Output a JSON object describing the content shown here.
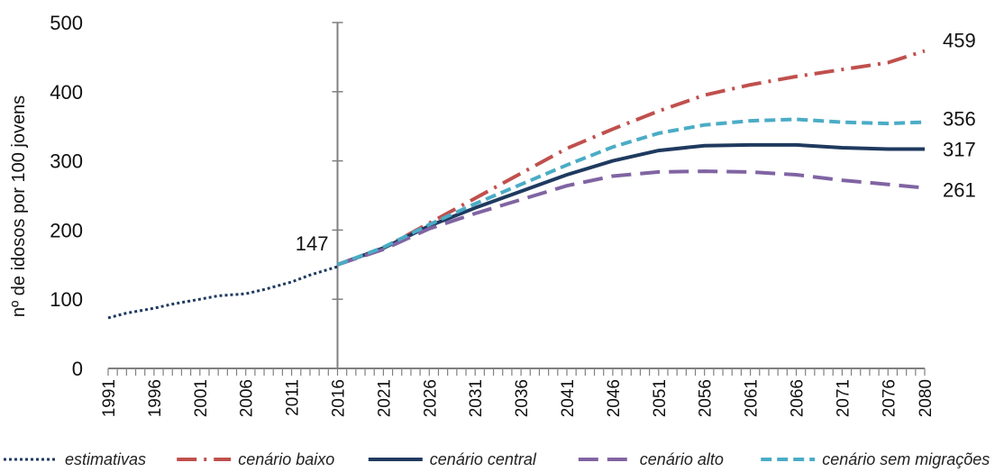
{
  "chart_data": {
    "type": "line",
    "ylabel": "nº de idosos por 100 jovens",
    "xlabel": "",
    "ylim": [
      0,
      500
    ],
    "yticks": [
      0,
      100,
      200,
      300,
      400,
      500
    ],
    "x_range": [
      1991,
      2080
    ],
    "xticks": [
      1991,
      1996,
      2001,
      2006,
      2011,
      2016,
      2021,
      2026,
      2031,
      2036,
      2041,
      2046,
      2051,
      2056,
      2061,
      2066,
      2071,
      2076,
      2080
    ],
    "divider_year": 2016,
    "grid": false,
    "legend_position": "bottom",
    "annotations": [
      {
        "x": 2016,
        "y": 147,
        "label": "147"
      },
      {
        "x": 2080,
        "y": 459,
        "label": "459"
      },
      {
        "x": 2080,
        "y": 356,
        "label": "356"
      },
      {
        "x": 2080,
        "y": 317,
        "label": "317"
      },
      {
        "x": 2080,
        "y": 261,
        "label": "261"
      }
    ],
    "series": [
      {
        "name": "estimativas",
        "color": "#1f3a5f",
        "style": "dotted",
        "x": [
          1991,
          1993,
          1996,
          1998,
          2001,
          2003,
          2006,
          2008,
          2011,
          2013,
          2016
        ],
        "y": [
          73,
          80,
          87,
          93,
          100,
          105,
          108,
          114,
          125,
          135,
          147
        ]
      },
      {
        "name": "cenário baixo",
        "color": "#c0504d",
        "style": "dashdot",
        "x": [
          2016,
          2021,
          2026,
          2031,
          2036,
          2041,
          2046,
          2051,
          2056,
          2061,
          2066,
          2071,
          2076,
          2080
        ],
        "y": [
          150,
          174,
          210,
          246,
          282,
          318,
          346,
          372,
          395,
          410,
          422,
          432,
          442,
          459
        ]
      },
      {
        "name": "cenário central",
        "color": "#1f3a5f",
        "style": "solid",
        "x": [
          2016,
          2021,
          2026,
          2031,
          2036,
          2041,
          2046,
          2051,
          2056,
          2061,
          2066,
          2071,
          2076,
          2080
        ],
        "y": [
          150,
          174,
          206,
          232,
          256,
          280,
          300,
          315,
          322,
          323,
          323,
          319,
          317,
          317
        ]
      },
      {
        "name": "cenário alto",
        "color": "#8064a2",
        "style": "longdash",
        "x": [
          2016,
          2021,
          2026,
          2031,
          2036,
          2041,
          2046,
          2051,
          2056,
          2061,
          2066,
          2071,
          2076,
          2080
        ],
        "y": [
          150,
          172,
          202,
          224,
          244,
          264,
          278,
          284,
          285,
          284,
          280,
          272,
          266,
          261
        ]
      },
      {
        "name": "cenário sem migrações",
        "color": "#4bacc6",
        "style": "dashed",
        "x": [
          2016,
          2021,
          2026,
          2031,
          2036,
          2041,
          2046,
          2051,
          2056,
          2061,
          2066,
          2071,
          2076,
          2080
        ],
        "y": [
          150,
          175,
          208,
          238,
          266,
          294,
          320,
          340,
          352,
          358,
          360,
          356,
          354,
          356
        ]
      }
    ]
  }
}
